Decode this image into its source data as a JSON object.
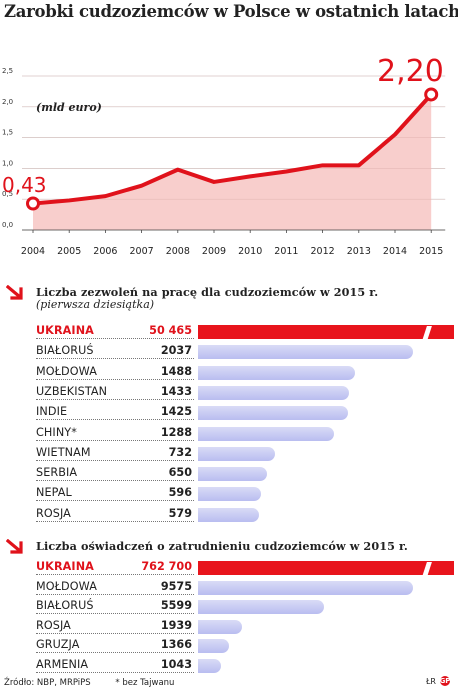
{
  "title": "Zarobki cudzoziemców w Polsce w ostatnich latach",
  "chart_data": [
    {
      "type": "area",
      "unit_label": "(mld euro)",
      "x": [
        "2004",
        "2005",
        "2006",
        "2007",
        "2008",
        "2009",
        "2010",
        "2011",
        "2012",
        "2013",
        "2014",
        "2015"
      ],
      "values": [
        0.43,
        0.48,
        0.55,
        0.72,
        0.98,
        0.78,
        0.87,
        0.95,
        1.05,
        1.05,
        1.55,
        2.2
      ],
      "ylim": [
        0,
        2.5
      ],
      "yticks": [
        "0,0",
        "0,5",
        "1,0",
        "1,5",
        "2,0",
        "2,5"
      ],
      "annotations": {
        "first": "0,43",
        "last": "2,20"
      },
      "line_color": "#e0121b",
      "fill_color": "#f7c9c6"
    },
    {
      "type": "bar",
      "title": "Liczba zezwoleń na pracę dla cudzoziemców w 2015 r.",
      "subtitle": "(pierwsza dziesiątka)",
      "categories": [
        "UKRAINA",
        "BIAŁORUŚ",
        "MOŁDOWA",
        "UZBEKISTAN",
        "INDIE",
        "CHINY*",
        "WIETNAM",
        "SERBIA",
        "NEPAL",
        "ROSJA"
      ],
      "values": [
        50465,
        2037,
        1488,
        1433,
        1425,
        1288,
        732,
        650,
        596,
        579
      ],
      "value_labels": [
        "50 465",
        "2037",
        "1488",
        "1433",
        "1425",
        "1288",
        "732",
        "650",
        "596",
        "579"
      ],
      "highlight": "UKRAINA",
      "highlight_color": "#e8141c",
      "bar_color": "#c3c6f2"
    },
    {
      "type": "bar",
      "title": "Liczba oświadczeń o zatrudnieniu cudzoziemców w 2015 r.",
      "categories": [
        "UKRAINA",
        "MOŁDOWA",
        "BIAŁORUŚ",
        "ROSJA",
        "GRUZJA",
        "ARMENIA"
      ],
      "values": [
        762700,
        9575,
        5599,
        1939,
        1366,
        1043
      ],
      "value_labels": [
        "762 700",
        "9575",
        "5599",
        "1939",
        "1366",
        "1043"
      ],
      "highlight": "UKRAINA",
      "highlight_color": "#e8141c",
      "bar_color": "#c3c6f2"
    }
  ],
  "footer": {
    "source": "Źródło: NBP, MRPiPS",
    "note": "* bez Tajwanu",
    "credit": "ŁR",
    "logo_text": "GP"
  }
}
